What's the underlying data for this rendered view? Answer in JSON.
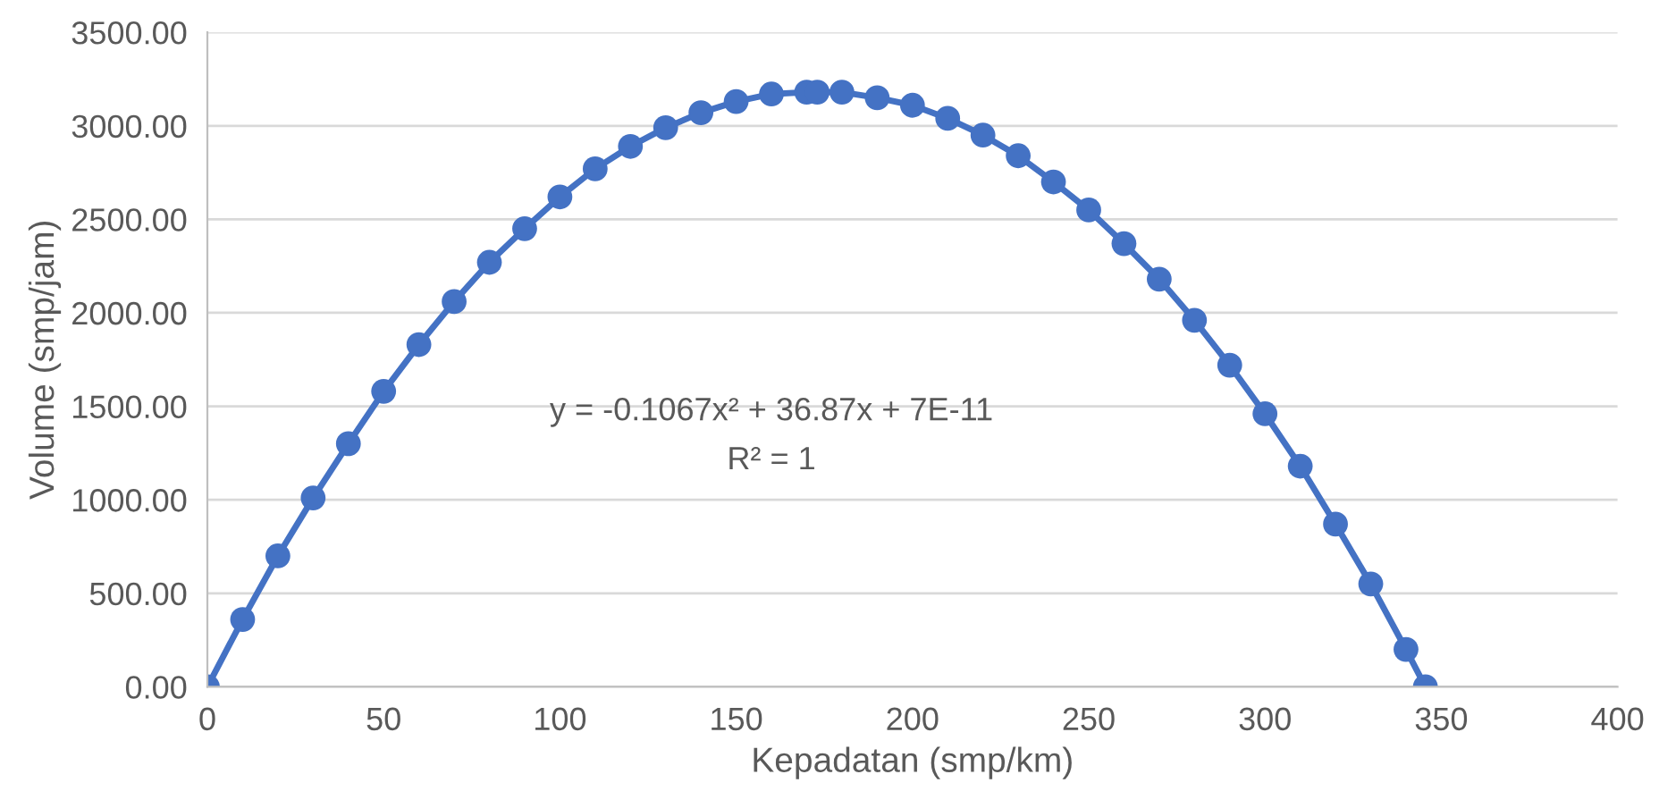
{
  "chart_data": {
    "type": "line",
    "xlabel": "Kepadatan (smp/km)",
    "ylabel": "Volume (smp/jam)",
    "series": [
      {
        "color": "#4472c4",
        "x": [
          0,
          10,
          20,
          30,
          40,
          50,
          60,
          70,
          80,
          90,
          100,
          110,
          120,
          130,
          140,
          150,
          160,
          170,
          173,
          180,
          190,
          200,
          210,
          220,
          230,
          240,
          250,
          260,
          270,
          280,
          290,
          300,
          310,
          320,
          330,
          340,
          345.5
        ],
        "values": [
          0,
          360,
          700,
          1010,
          1300,
          1580,
          1830,
          2060,
          2270,
          2450,
          2620,
          2770,
          2890,
          2990,
          3070,
          3130,
          3170,
          3180,
          3180,
          3180,
          3150,
          3110,
          3040,
          2950,
          2840,
          2700,
          2550,
          2370,
          2180,
          1960,
          1720,
          1460,
          1180,
          870,
          550,
          200,
          0
        ]
      }
    ],
    "marker": "circle",
    "line_style": "solid",
    "grid": "y",
    "xlim": [
      0,
      400
    ],
    "xticks": [
      0,
      50,
      100,
      150,
      200,
      250,
      300,
      350,
      400
    ],
    "ylim": [
      0,
      3500
    ],
    "yticks": [
      {
        "value": 0,
        "label": "0.00"
      },
      {
        "value": 500,
        "label": "500.00"
      },
      {
        "value": 1000,
        "label": "1000.00"
      },
      {
        "value": 1500,
        "label": "1500.00"
      },
      {
        "value": 2000,
        "label": "2000.00"
      },
      {
        "value": 2500,
        "label": "2500.00"
      },
      {
        "value": 3000,
        "label": "3000.00"
      },
      {
        "value": 3500,
        "label": "3500.00"
      }
    ],
    "annotations": [
      "y = -0.1067x² + 36.87x + 7E-11",
      "R² = 1"
    ]
  }
}
